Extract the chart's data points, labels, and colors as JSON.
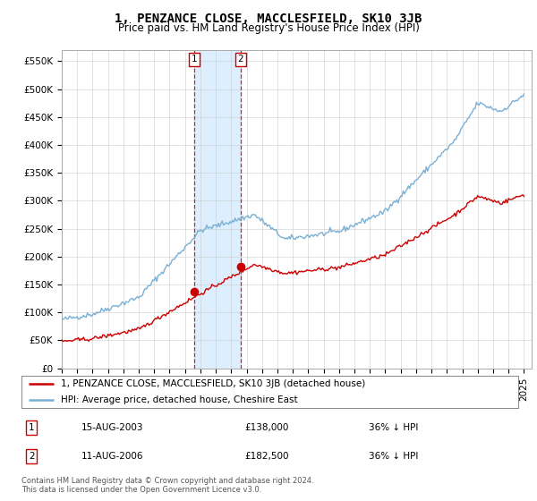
{
  "title": "1, PENZANCE CLOSE, MACCLESFIELD, SK10 3JB",
  "subtitle": "Price paid vs. HM Land Registry's House Price Index (HPI)",
  "ytick_labels": [
    "£0",
    "£50K",
    "£100K",
    "£150K",
    "£200K",
    "£250K",
    "£300K",
    "£350K",
    "£400K",
    "£450K",
    "£500K",
    "£550K"
  ],
  "yticks": [
    0,
    50000,
    100000,
    150000,
    200000,
    250000,
    300000,
    350000,
    400000,
    450000,
    500000,
    550000
  ],
  "ylim": [
    0,
    570000
  ],
  "xlim_start": 1995,
  "xlim_end": 2025.5,
  "line1_color": "#cc0000",
  "line2_color": "#7ab0d4",
  "shade_color": "#ddeeff",
  "marker_color": "#cc0000",
  "sale1_x": 2003.617,
  "sale1_y": 138000,
  "sale2_x": 2006.617,
  "sale2_y": 182500,
  "legend_line1": "1, PENZANCE CLOSE, MACCLESFIELD, SK10 3JB (detached house)",
  "legend_line2": "HPI: Average price, detached house, Cheshire East",
  "sale1_date": "15-AUG-2003",
  "sale1_price": "£138,000",
  "sale1_hpi": "36% ↓ HPI",
  "sale2_date": "11-AUG-2006",
  "sale2_price": "£182,500",
  "sale2_hpi": "36% ↓ HPI",
  "footer1": "Contains HM Land Registry data © Crown copyright and database right 2024.",
  "footer2": "This data is licensed under the Open Government Licence v3.0.",
  "background_color": "#ffffff",
  "grid_color": "#cccccc",
  "title_fontsize": 10,
  "subtitle_fontsize": 8.5,
  "tick_fontsize": 7.5,
  "legend_fontsize": 7.5,
  "table_fontsize": 7.5
}
